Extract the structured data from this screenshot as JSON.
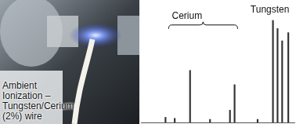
{
  "chart_data": {
    "type": "bar",
    "x": [
      16,
      22,
      32,
      45,
      58,
      61,
      76,
      86,
      89,
      92,
      96
    ],
    "values": [
      5,
      4,
      51,
      3,
      12,
      37,
      3,
      100,
      92,
      80,
      88
    ],
    "color": "#333333",
    "xlim": [
      0,
      100
    ],
    "ylim": [
      0,
      120
    ],
    "tick_labels": false,
    "grid": false,
    "annotations": [
      {
        "text": "Cerium",
        "x": 30,
        "y": 104,
        "bracket": [
          18,
          63
        ]
      },
      {
        "text": "Tungsten",
        "x": 84,
        "y": 110
      }
    ]
  },
  "photo": {
    "caption_lines": [
      "Ambient",
      "Ionization –",
      "Tungsten/Cerium",
      "(2%) wire"
    ]
  }
}
